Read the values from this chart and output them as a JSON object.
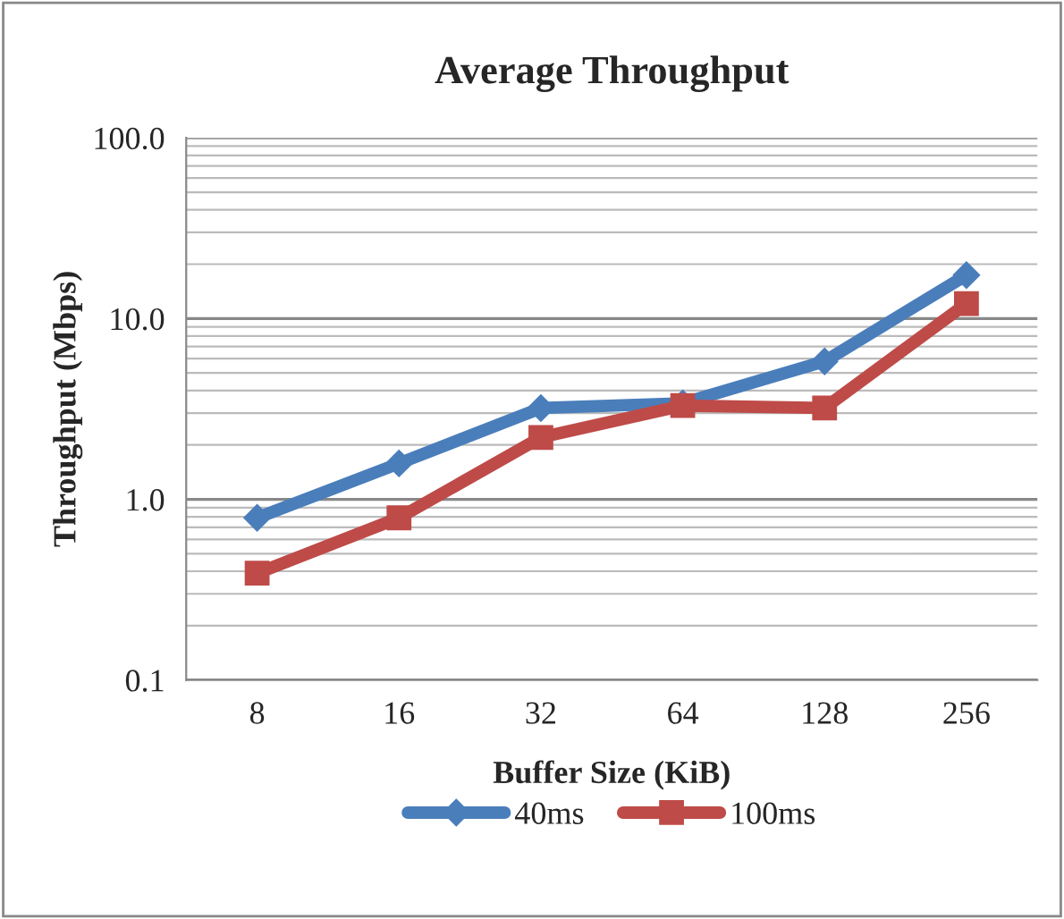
{
  "chart_data": {
    "type": "line",
    "title": "Average Throughput",
    "xlabel": "Buffer Size (KiB)",
    "ylabel": "Throughput (Mbps)",
    "categories": [
      "8",
      "16",
      "32",
      "64",
      "128",
      "256"
    ],
    "series": [
      {
        "name": "40ms",
        "color": "#4a7ebb",
        "values": [
          0.79,
          1.58,
          3.2,
          3.4,
          5.8,
          17.4
        ],
        "marker": "diamond"
      },
      {
        "name": "100ms",
        "color": "#be4b48",
        "values": [
          0.39,
          0.79,
          2.2,
          3.3,
          3.2,
          12.1
        ],
        "marker": "square"
      }
    ],
    "log": "y",
    "ylim": [
      0.1,
      100
    ],
    "yticks": [
      {
        "value": 0.1,
        "label": "0.1"
      },
      {
        "value": 1,
        "label": "1.0"
      },
      {
        "value": 10,
        "label": "10.0"
      },
      {
        "value": 100,
        "label": "100.0"
      }
    ],
    "grid": "y",
    "legend": "bottom",
    "line_style": "solid"
  }
}
